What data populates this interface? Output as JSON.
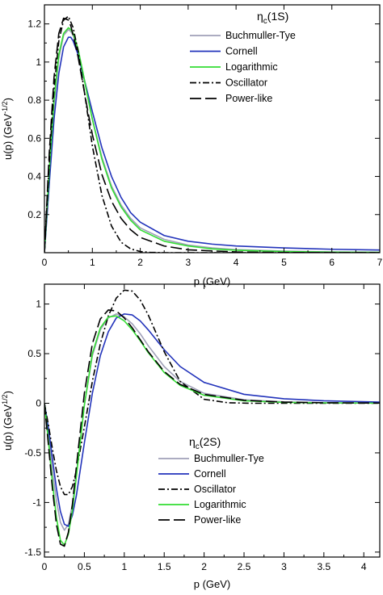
{
  "chart_data": [
    {
      "type": "line",
      "title_main": "η",
      "title_sub": "c",
      "title_suffix": "(1S)",
      "xlabel": "p (GeV)",
      "ylabel_main": "u(p) (GeV",
      "ylabel_sup": "-1/2",
      "ylabel_end": ")",
      "xlim": [
        0,
        7
      ],
      "ylim": [
        0,
        1.3
      ],
      "xticks": [
        "0",
        "1",
        "2",
        "3",
        "4",
        "5",
        "6",
        "7"
      ],
      "yticks": [
        "0.2",
        "0.4",
        "0.6",
        "0.8",
        "1",
        "1.2"
      ],
      "grid": false,
      "legend_position": "top-right",
      "series": [
        {
          "name": "Buchmuller-Tye",
          "color": "#a0a0b8",
          "style": "solid",
          "x": [
            0,
            0.1,
            0.2,
            0.3,
            0.4,
            0.5,
            0.55,
            0.6,
            0.7,
            0.8,
            0.9,
            1.0,
            1.2,
            1.4,
            1.6,
            1.8,
            2.0,
            2.5,
            3.0,
            3.5,
            4.0,
            5.0,
            6.0,
            7.0
          ],
          "y": [
            0,
            0.42,
            0.78,
            1.02,
            1.14,
            1.17,
            1.16,
            1.14,
            1.06,
            0.95,
            0.82,
            0.7,
            0.5,
            0.35,
            0.25,
            0.18,
            0.13,
            0.07,
            0.04,
            0.025,
            0.016,
            0.008,
            0.004,
            0.002
          ]
        },
        {
          "name": "Cornell",
          "color": "#2233bb",
          "style": "solid",
          "x": [
            0,
            0.1,
            0.2,
            0.3,
            0.4,
            0.5,
            0.55,
            0.6,
            0.7,
            0.8,
            0.9,
            1.0,
            1.2,
            1.4,
            1.6,
            1.8,
            2.0,
            2.5,
            3.0,
            3.5,
            4.0,
            5.0,
            6.0,
            7.0
          ],
          "y": [
            0,
            0.36,
            0.7,
            0.94,
            1.08,
            1.13,
            1.13,
            1.11,
            1.04,
            0.94,
            0.84,
            0.74,
            0.55,
            0.4,
            0.29,
            0.21,
            0.16,
            0.09,
            0.06,
            0.045,
            0.035,
            0.025,
            0.018,
            0.014
          ]
        },
        {
          "name": "Logarithmic",
          "color": "#33dd33",
          "style": "solid",
          "x": [
            0,
            0.1,
            0.2,
            0.3,
            0.4,
            0.5,
            0.55,
            0.6,
            0.7,
            0.8,
            0.9,
            1.0,
            1.2,
            1.4,
            1.6,
            1.8,
            2.0,
            2.5,
            3.0,
            3.5,
            4.0,
            5.0,
            6.0,
            7.0
          ],
          "y": [
            0,
            0.43,
            0.8,
            1.04,
            1.15,
            1.18,
            1.17,
            1.15,
            1.07,
            0.95,
            0.82,
            0.7,
            0.49,
            0.34,
            0.24,
            0.17,
            0.12,
            0.06,
            0.035,
            0.02,
            0.013,
            0.006,
            0.003,
            0.002
          ]
        },
        {
          "name": "Oscillator",
          "color": "#000000",
          "style": "dashdot",
          "x": [
            0,
            0.1,
            0.2,
            0.3,
            0.4,
            0.5,
            0.6,
            0.7,
            0.8,
            0.9,
            1.0,
            1.2,
            1.4,
            1.6,
            1.8,
            2.0,
            2.2,
            2.5,
            3.0,
            7.0
          ],
          "y": [
            0,
            0.47,
            0.86,
            1.11,
            1.22,
            1.24,
            1.18,
            1.06,
            0.9,
            0.73,
            0.56,
            0.3,
            0.14,
            0.055,
            0.02,
            0.006,
            0.002,
            0,
            0,
            0
          ]
        },
        {
          "name": "Power-like",
          "color": "#000000",
          "style": "longdash",
          "x": [
            0,
            0.1,
            0.2,
            0.3,
            0.4,
            0.5,
            0.55,
            0.6,
            0.7,
            0.8,
            0.9,
            1.0,
            1.2,
            1.4,
            1.6,
            1.8,
            2.0,
            2.5,
            3.0,
            4.0,
            5.0,
            7.0
          ],
          "y": [
            0,
            0.52,
            0.92,
            1.15,
            1.23,
            1.22,
            1.19,
            1.14,
            1.03,
            0.89,
            0.75,
            0.62,
            0.41,
            0.27,
            0.18,
            0.12,
            0.08,
            0.035,
            0.015,
            0.004,
            0.001,
            0
          ]
        }
      ]
    },
    {
      "type": "line",
      "title_main": "η",
      "title_sub": "c",
      "title_suffix": "(2S)",
      "xlabel": "p (GeV)",
      "ylabel_main": "u(p) (GeV",
      "ylabel_sup": "1/2",
      "ylabel_end": ")",
      "xlim": [
        0,
        4.2
      ],
      "ylim": [
        -1.55,
        1.2
      ],
      "xticks": [
        "0",
        "0.5",
        "1",
        "1.5",
        "2",
        "2.5",
        "3",
        "3.5",
        "4"
      ],
      "yticks": [
        "-1.5",
        "-1",
        "-0.5",
        "0",
        "0.5",
        "1"
      ],
      "grid": false,
      "legend_position": "bottom-center",
      "series": [
        {
          "name": "Buchmuller-Tye",
          "color": "#a0a0b8",
          "style": "solid",
          "x": [
            0,
            0.05,
            0.1,
            0.15,
            0.2,
            0.25,
            0.3,
            0.35,
            0.4,
            0.5,
            0.6,
            0.7,
            0.8,
            0.9,
            1.0,
            1.1,
            1.2,
            1.3,
            1.5,
            1.7,
            2.0,
            2.5,
            3.0,
            3.5,
            4.2
          ],
          "y": [
            0,
            -0.32,
            -0.68,
            -0.98,
            -1.2,
            -1.28,
            -1.22,
            -1.02,
            -0.72,
            -0.02,
            0.48,
            0.74,
            0.86,
            0.9,
            0.87,
            0.8,
            0.7,
            0.58,
            0.37,
            0.22,
            0.1,
            0.035,
            0.014,
            0.006,
            0.002
          ]
        },
        {
          "name": "Cornell",
          "color": "#2233bb",
          "style": "solid",
          "x": [
            0,
            0.05,
            0.1,
            0.15,
            0.2,
            0.25,
            0.3,
            0.35,
            0.4,
            0.5,
            0.6,
            0.7,
            0.8,
            0.9,
            1.0,
            1.1,
            1.2,
            1.3,
            1.5,
            1.7,
            2.0,
            2.5,
            3.0,
            3.5,
            4.2
          ],
          "y": [
            0,
            -0.25,
            -0.56,
            -0.86,
            -1.09,
            -1.22,
            -1.24,
            -1.13,
            -0.93,
            -0.4,
            0.1,
            0.48,
            0.72,
            0.86,
            0.9,
            0.89,
            0.83,
            0.74,
            0.54,
            0.37,
            0.21,
            0.09,
            0.045,
            0.025,
            0.012
          ]
        },
        {
          "name": "Oscillator",
          "color": "#000000",
          "style": "dashdot",
          "x": [
            0,
            0.05,
            0.1,
            0.15,
            0.2,
            0.25,
            0.3,
            0.35,
            0.4,
            0.5,
            0.6,
            0.7,
            0.8,
            0.9,
            1.0,
            1.1,
            1.2,
            1.3,
            1.5,
            1.7,
            2.0,
            2.3,
            2.6,
            3.0,
            4.2
          ],
          "y": [
            0,
            -0.22,
            -0.46,
            -0.68,
            -0.84,
            -0.92,
            -0.92,
            -0.84,
            -0.68,
            -0.24,
            0.22,
            0.6,
            0.88,
            1.06,
            1.14,
            1.13,
            1.04,
            0.89,
            0.52,
            0.22,
            0.04,
            0.005,
            0,
            0,
            0
          ]
        },
        {
          "name": "Logarithmic",
          "color": "#33dd33",
          "style": "solid",
          "x": [
            0,
            0.05,
            0.1,
            0.15,
            0.2,
            0.25,
            0.3,
            0.35,
            0.4,
            0.5,
            0.6,
            0.7,
            0.8,
            0.9,
            1.0,
            1.1,
            1.2,
            1.3,
            1.5,
            1.7,
            2.0,
            2.5,
            3.0,
            3.5,
            4.2
          ],
          "y": [
            0,
            -0.38,
            -0.8,
            -1.15,
            -1.38,
            -1.43,
            -1.32,
            -1.08,
            -0.74,
            -0.02,
            0.5,
            0.76,
            0.87,
            0.88,
            0.83,
            0.74,
            0.63,
            0.51,
            0.31,
            0.18,
            0.08,
            0.025,
            0.009,
            0.004,
            0.001
          ]
        },
        {
          "name": "Power-like",
          "color": "#000000",
          "style": "longdash",
          "x": [
            0,
            0.05,
            0.1,
            0.15,
            0.2,
            0.25,
            0.3,
            0.35,
            0.4,
            0.5,
            0.6,
            0.7,
            0.8,
            0.9,
            1.0,
            1.1,
            1.2,
            1.3,
            1.5,
            1.7,
            2.0,
            2.5,
            3.0,
            3.5,
            4.2
          ],
          "y": [
            0,
            -0.42,
            -0.86,
            -1.22,
            -1.42,
            -1.44,
            -1.3,
            -1.02,
            -0.64,
            0.1,
            0.6,
            0.85,
            0.94,
            0.93,
            0.86,
            0.76,
            0.64,
            0.52,
            0.32,
            0.19,
            0.09,
            0.03,
            0.012,
            0.005,
            0.002
          ]
        }
      ]
    }
  ]
}
